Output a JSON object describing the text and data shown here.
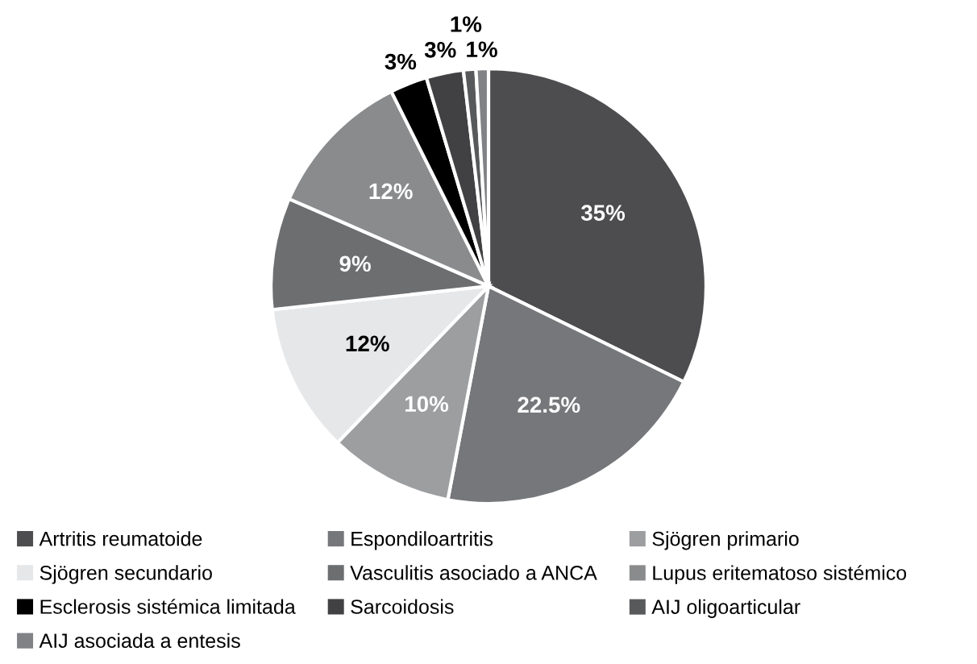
{
  "chart_data": {
    "type": "pie",
    "categories": [
      "Artritis reumatoide",
      "Espondiloartritis",
      "Sjögren primario",
      "Sjögren secundario",
      "Vasculitis asociado a ANCA",
      "Lupus eritematoso sistémico",
      "Esclerosis sistémica limitada",
      "Sarcoidosis",
      "AIJ oligoarticular",
      "AIJ asociada a entesis"
    ],
    "values": [
      35,
      22.5,
      10,
      12,
      9,
      12,
      3,
      3,
      1,
      1
    ],
    "value_labels": [
      "35%",
      "22.5%",
      "10%",
      "12%",
      "9%",
      "12%",
      "3%",
      "3%",
      "1%",
      "1%"
    ],
    "colors": [
      "#4d4d4f",
      "#76777a",
      "#9d9ea0",
      "#e6e7e8",
      "#6d6e70",
      "#8a8b8d",
      "#000000",
      "#414042",
      "#58595b",
      "#808285"
    ],
    "legend": "bottom"
  }
}
